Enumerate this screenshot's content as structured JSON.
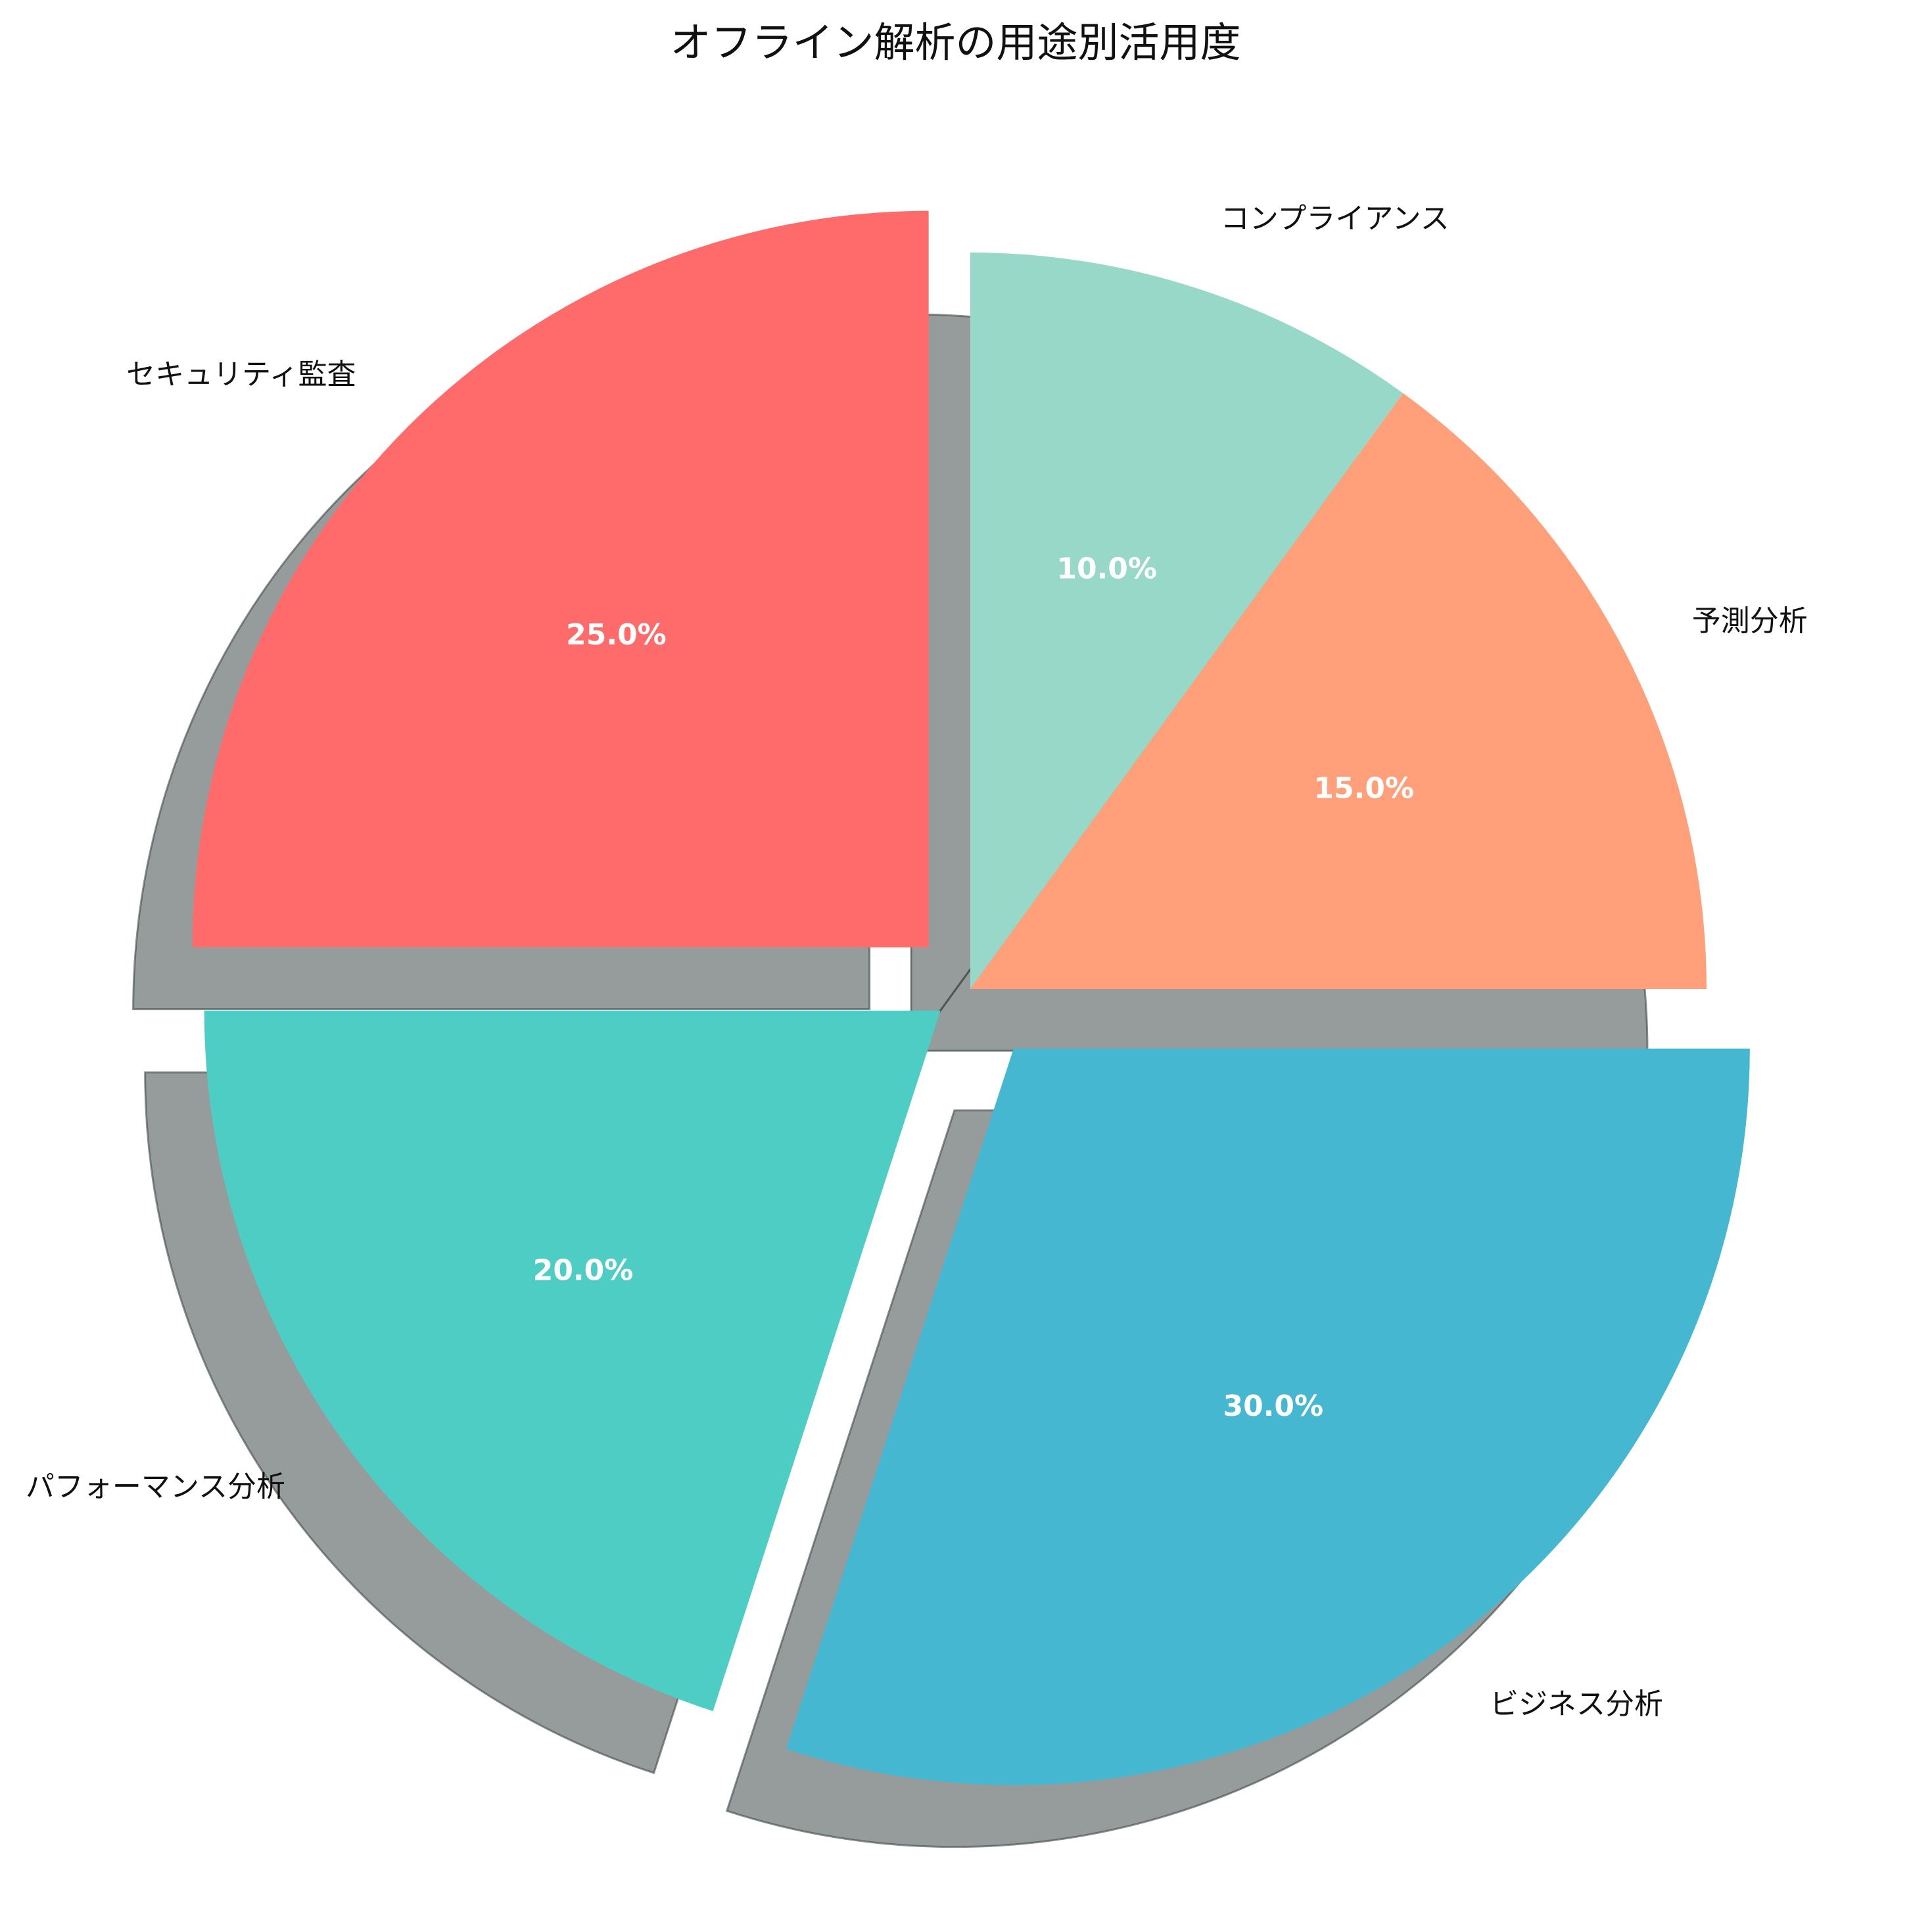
{
  "chart_data": {
    "type": "pie",
    "title": "オフライン解析の用途別活用度",
    "start_angle_deg": 90,
    "direction": "clockwise",
    "shadow": true,
    "slices": [
      {
        "label": "コンプライアンス",
        "value": 10.0,
        "pct_label": "10.0%",
        "color": "#98D8C8",
        "explode": 0.0
      },
      {
        "label": "予測分析",
        "value": 15.0,
        "pct_label": "15.0%",
        "color": "#FFA07A",
        "explode": 0.0
      },
      {
        "label": "ビジネス分析",
        "value": 30.0,
        "pct_label": "30.0%",
        "color": "#45B7D1",
        "explode": 0.1
      },
      {
        "label": "パフォーマンス分析",
        "value": 20.0,
        "pct_label": "20.0%",
        "color": "#4ECDC4",
        "explode": 0.05
      },
      {
        "label": "セキュリティ監査",
        "value": 25.0,
        "pct_label": "25.0%",
        "color": "#FF6B6B",
        "explode": 0.08
      }
    ]
  }
}
